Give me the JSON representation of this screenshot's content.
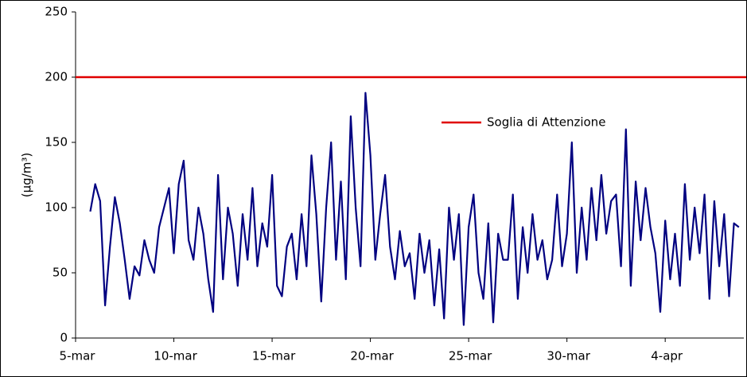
{
  "chart_data": {
    "type": "line",
    "categories": [
      "5-mar",
      null,
      null,
      null,
      null,
      null,
      null,
      null,
      null,
      null,
      null,
      null,
      null,
      null,
      null,
      null,
      null,
      null,
      null,
      null,
      "10-mar",
      null,
      null,
      null,
      null,
      null,
      null,
      null,
      null,
      null,
      null,
      null,
      null,
      null,
      null,
      null,
      null,
      null,
      null,
      null,
      "15-mar",
      null,
      null,
      null,
      null,
      null,
      null,
      null,
      null,
      null,
      null,
      null,
      null,
      null,
      null,
      null,
      null,
      null,
      null,
      null,
      "20-mar",
      null,
      null,
      null,
      null,
      null,
      null,
      null,
      null,
      null,
      null,
      null,
      null,
      null,
      null,
      null,
      null,
      null,
      null,
      null,
      "25-mar",
      null,
      null,
      null,
      null,
      null,
      null,
      null,
      null,
      null,
      null,
      null,
      null,
      null,
      null,
      null,
      null,
      null,
      null,
      null,
      "30-mar",
      null,
      null,
      null,
      null,
      null,
      null,
      null,
      null,
      null,
      null,
      null,
      null,
      null,
      null,
      null,
      null,
      null,
      null,
      null,
      "4-apr",
      null,
      null,
      null,
      null,
      null,
      null,
      null,
      null,
      null,
      null,
      null,
      null,
      null,
      null,
      null
    ],
    "series": [
      {
        "name": "",
        "color": "#000080",
        "values": [
          null,
          null,
          null,
          97,
          118,
          105,
          25,
          70,
          108,
          88,
          60,
          30,
          55,
          48,
          75,
          60,
          50,
          85,
          100,
          115,
          65,
          118,
          136,
          75,
          60,
          100,
          80,
          45,
          20,
          125,
          45,
          100,
          80,
          40,
          95,
          60,
          115,
          55,
          88,
          70,
          125,
          40,
          32,
          70,
          80,
          45,
          95,
          55,
          140,
          95,
          28,
          100,
          150,
          60,
          120,
          45,
          170,
          100,
          55,
          188,
          140,
          60,
          95,
          125,
          70,
          45,
          82,
          55,
          65,
          30,
          80,
          50,
          75,
          25,
          68,
          15,
          100,
          60,
          95,
          10,
          85,
          110,
          50,
          30,
          88,
          12,
          80,
          60,
          60,
          110,
          30,
          85,
          50,
          95,
          60,
          75,
          45,
          60,
          110,
          55,
          80,
          150,
          50,
          100,
          60,
          115,
          75,
          125,
          80,
          105,
          110,
          55,
          160,
          40,
          120,
          75,
          115,
          85,
          65,
          20,
          90,
          45,
          80,
          40,
          118,
          60,
          100,
          65,
          110,
          30,
          105,
          55,
          95,
          32,
          88,
          85
        ]
      }
    ],
    "threshold": {
      "name": "Soglia di Attenzione",
      "color": "#e00000",
      "value": 200
    },
    "ylabel": "(µg/m³)",
    "ylim": [
      0,
      250
    ],
    "yticks": [
      0,
      50,
      100,
      150,
      200,
      250
    ]
  }
}
